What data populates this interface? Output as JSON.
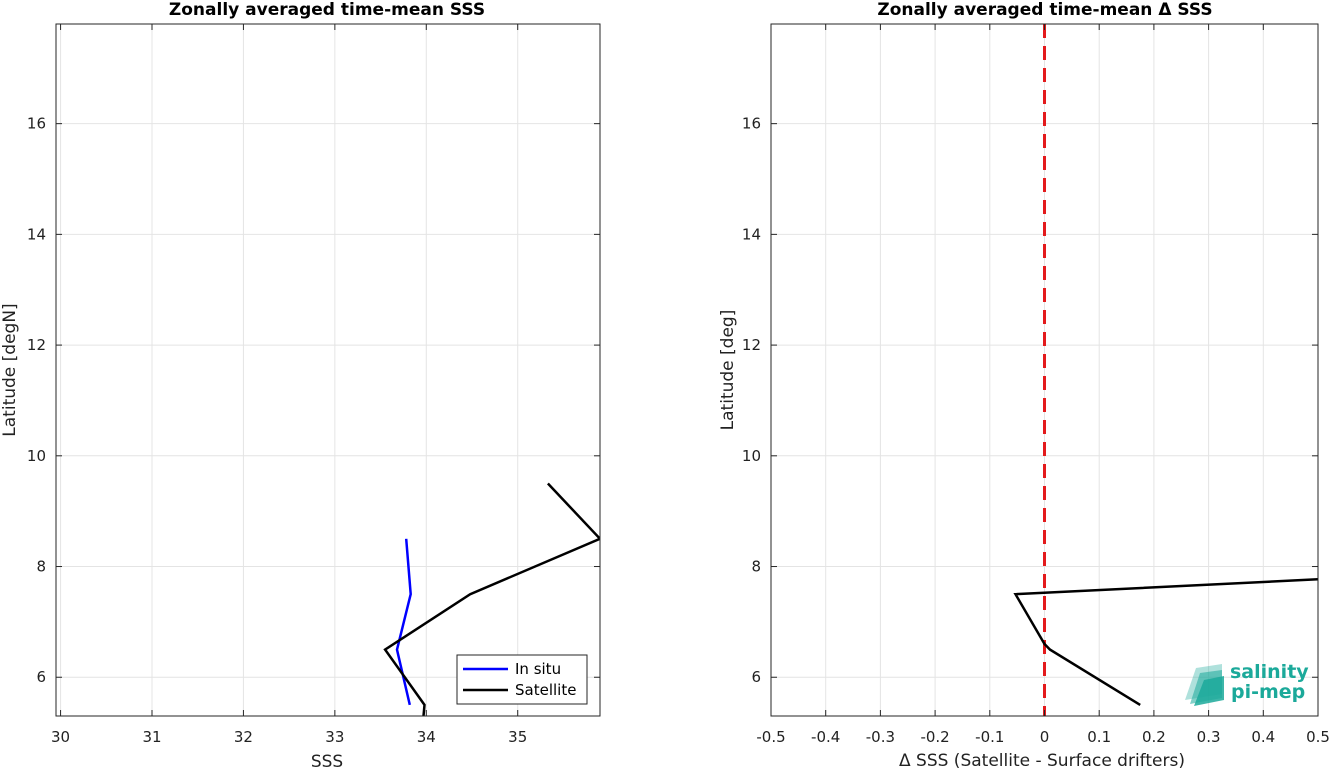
{
  "chart_data": [
    {
      "type": "line",
      "title": "Zonally averaged time-mean SSS",
      "xlabel": "SSS",
      "ylabel": "Latitude [degN]",
      "xlim": [
        29.95,
        35.9
      ],
      "ylim": [
        5.3,
        17.8
      ],
      "xticks": [
        "30",
        "31",
        "32",
        "33",
        "34",
        "35"
      ],
      "xtick_values": [
        30,
        31,
        32,
        33,
        34,
        35
      ],
      "yticks": [
        "6",
        "8",
        "10",
        "12",
        "14",
        "16"
      ],
      "ytick_values": [
        6,
        8,
        10,
        12,
        14,
        16
      ],
      "grid": true,
      "legend_position": "bottom-right",
      "series": [
        {
          "name": "In situ",
          "color": "#0000ff",
          "points": [
            [
              33.78,
              8.5
            ],
            [
              33.83,
              7.5
            ],
            [
              33.68,
              6.5
            ],
            [
              33.82,
              5.5
            ]
          ]
        },
        {
          "name": "Satellite",
          "color": "#000000",
          "points": [
            [
              35.33,
              9.5
            ],
            [
              35.9,
              8.5
            ],
            [
              34.48,
              7.5
            ],
            [
              33.55,
              6.5
            ],
            [
              33.98,
              5.5
            ],
            [
              33.97,
              5.3
            ]
          ]
        }
      ]
    },
    {
      "type": "line",
      "title": "Zonally averaged time-mean Δ SSS",
      "xlabel": "Δ SSS (Satellite - Surface drifters)",
      "ylabel": "Latitude [deg]",
      "xlim": [
        -0.5,
        0.5
      ],
      "ylim": [
        5.3,
        17.8
      ],
      "xticks": [
        "-0.5",
        "-0.4",
        "-0.3",
        "-0.2",
        "-0.1",
        "0",
        "0.1",
        "0.2",
        "0.3",
        "0.4",
        "0.5"
      ],
      "xtick_values": [
        -0.5,
        -0.4,
        -0.3,
        -0.2,
        -0.1,
        0,
        0.1,
        0.2,
        0.3,
        0.4,
        0.5
      ],
      "yticks": [
        "6",
        "8",
        "10",
        "12",
        "14",
        "16"
      ],
      "ytick_values": [
        6,
        8,
        10,
        12,
        14,
        16
      ],
      "grid": true,
      "reference_line": {
        "x": 0,
        "color": "#e31a1c",
        "style": "dashed"
      },
      "series": [
        {
          "color": "#000000",
          "points": [
            [
              0.5,
              7.77
            ],
            [
              -0.053,
              7.5
            ],
            [
              0.0,
              6.6
            ],
            [
              0.01,
              6.5
            ],
            [
              0.175,
              5.5
            ]
          ]
        }
      ]
    }
  ],
  "logo": {
    "line1": "salinity",
    "line2": "pi-mep"
  }
}
